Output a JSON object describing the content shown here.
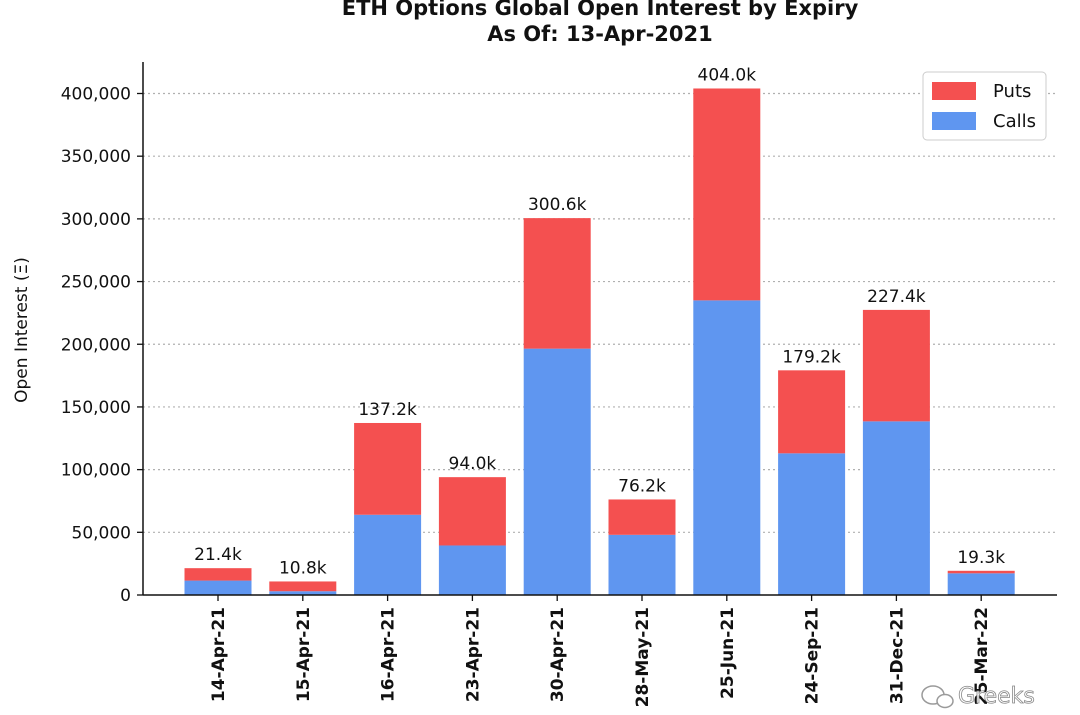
{
  "chart_data": {
    "type": "bar",
    "stacked": true,
    "title_lines": [
      "ETH Options Global Open Interest by Expiry",
      "As Of: 13-Apr-2021"
    ],
    "ylabel": "Open Interest (Ξ)",
    "xlabel": "",
    "ylim": [
      0,
      425000
    ],
    "yticks": [
      0,
      50000,
      100000,
      150000,
      200000,
      250000,
      300000,
      350000,
      400000
    ],
    "ytick_labels": [
      "0",
      "50,000",
      "100,000",
      "150,000",
      "200,000",
      "250,000",
      "300,000",
      "350,000",
      "400,000"
    ],
    "grid": "horizontal-dotted",
    "legend_position": "top-right",
    "categories": [
      "14-Apr-21",
      "15-Apr-21",
      "16-Apr-21",
      "23-Apr-21",
      "30-Apr-21",
      "28-May-21",
      "25-Jun-21",
      "24-Sep-21",
      "31-Dec-21",
      "25-Mar-22"
    ],
    "series": [
      {
        "name": "Calls",
        "color": "#5f96f0",
        "values": [
          11500,
          3000,
          64000,
          39500,
          196500,
          48000,
          235000,
          113000,
          138500,
          17300
        ]
      },
      {
        "name": "Puts",
        "color": "#f45050",
        "values": [
          9900,
          7800,
          73200,
          54500,
          104100,
          28200,
          169000,
          66200,
          88900,
          2000
        ]
      }
    ],
    "legend_order": [
      "Puts",
      "Calls"
    ],
    "totals_labels": [
      "21.4k",
      "10.8k",
      "137.2k",
      "94.0k",
      "300.6k",
      "76.2k",
      "404.0k",
      "179.2k",
      "227.4k",
      "19.3k"
    ],
    "watermark": "Greeks"
  }
}
